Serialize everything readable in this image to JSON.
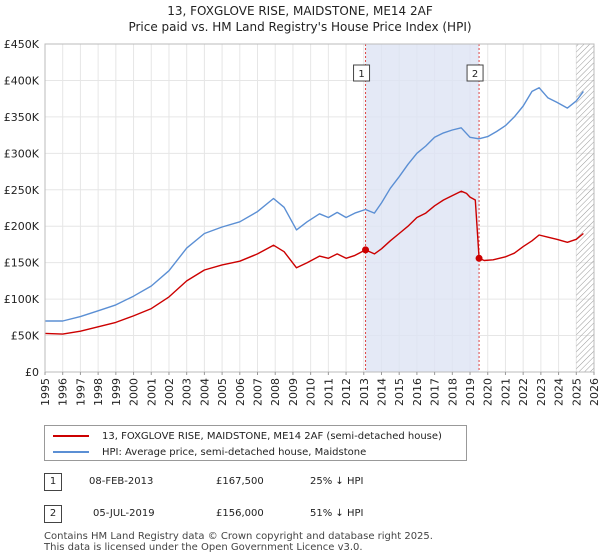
{
  "title_line1": "13, FOXGLOVE RISE, MAIDSTONE, ME14 2AF",
  "title_line2": "Price paid vs. HM Land Registry's House Price Index (HPI)",
  "colors": {
    "red": "#cc0000",
    "blue": "#5b8fd4",
    "band": "#dde4f4",
    "vline": "#dd4444"
  },
  "chart_data": {
    "type": "line",
    "title": "13, FOXGLOVE RISE, MAIDSTONE, ME14 2AF — Price paid vs. HM Land Registry's House Price Index (HPI)",
    "xlim": [
      1995,
      2026
    ],
    "ylim": [
      0,
      450000
    ],
    "x_ticks": [
      1995,
      1996,
      1997,
      1998,
      1999,
      2000,
      2001,
      2002,
      2003,
      2004,
      2005,
      2006,
      2007,
      2008,
      2009,
      2010,
      2011,
      2012,
      2013,
      2014,
      2015,
      2016,
      2017,
      2018,
      2019,
      2020,
      2021,
      2022,
      2023,
      2024,
      2025,
      2026
    ],
    "y_ticks": [
      0,
      50000,
      100000,
      150000,
      200000,
      250000,
      300000,
      350000,
      400000,
      450000
    ],
    "y_tick_labels": [
      "£0",
      "£50K",
      "£100K",
      "£150K",
      "£200K",
      "£250K",
      "£300K",
      "£350K",
      "£400K",
      "£450K"
    ],
    "shaded_band": [
      2013.1,
      2019.51
    ],
    "future_hatch_from": 2025.0,
    "series": [
      {
        "name": "13, FOXGLOVE RISE, MAIDSTONE, ME14 2AF (semi-detached house)",
        "color": "#cc0000",
        "points": [
          [
            1995.0,
            53000
          ],
          [
            1996.0,
            52000
          ],
          [
            1997.0,
            56000
          ],
          [
            1998.0,
            62000
          ],
          [
            1999.0,
            68000
          ],
          [
            2000.0,
            77000
          ],
          [
            2001.0,
            87000
          ],
          [
            2002.0,
            103000
          ],
          [
            2003.0,
            125000
          ],
          [
            2004.0,
            140000
          ],
          [
            2005.0,
            147000
          ],
          [
            2006.0,
            152000
          ],
          [
            2007.0,
            162000
          ],
          [
            2007.9,
            174000
          ],
          [
            2008.5,
            165000
          ],
          [
            2009.2,
            143000
          ],
          [
            2009.8,
            150000
          ],
          [
            2010.5,
            159000
          ],
          [
            2011.0,
            156000
          ],
          [
            2011.5,
            162000
          ],
          [
            2012.0,
            156000
          ],
          [
            2012.5,
            160000
          ],
          [
            2013.1,
            167500
          ],
          [
            2013.6,
            162000
          ],
          [
            2014.0,
            169000
          ],
          [
            2014.5,
            180000
          ],
          [
            2015.0,
            190000
          ],
          [
            2015.5,
            200000
          ],
          [
            2016.0,
            212000
          ],
          [
            2016.5,
            218000
          ],
          [
            2017.0,
            228000
          ],
          [
            2017.5,
            236000
          ],
          [
            2018.0,
            242000
          ],
          [
            2018.5,
            248000
          ],
          [
            2018.8,
            245000
          ],
          [
            2019.0,
            240000
          ],
          [
            2019.3,
            236000
          ],
          [
            2019.51,
            156000
          ],
          [
            2019.8,
            153000
          ],
          [
            2020.3,
            154000
          ],
          [
            2021.0,
            158000
          ],
          [
            2021.5,
            163000
          ],
          [
            2022.0,
            172000
          ],
          [
            2022.5,
            180000
          ],
          [
            2022.9,
            188000
          ],
          [
            2023.4,
            185000
          ],
          [
            2023.9,
            182000
          ],
          [
            2024.5,
            178000
          ],
          [
            2025.0,
            182000
          ],
          [
            2025.4,
            190000
          ]
        ]
      },
      {
        "name": "HPI: Average price, semi-detached house, Maidstone",
        "color": "#5b8fd4",
        "points": [
          [
            1995.0,
            70000
          ],
          [
            1996.0,
            70000
          ],
          [
            1997.0,
            76000
          ],
          [
            1998.0,
            84000
          ],
          [
            1999.0,
            92000
          ],
          [
            2000.0,
            104000
          ],
          [
            2001.0,
            118000
          ],
          [
            2002.0,
            139000
          ],
          [
            2003.0,
            170000
          ],
          [
            2004.0,
            190000
          ],
          [
            2005.0,
            199000
          ],
          [
            2006.0,
            206000
          ],
          [
            2007.0,
            220000
          ],
          [
            2007.9,
            238000
          ],
          [
            2008.5,
            226000
          ],
          [
            2009.2,
            195000
          ],
          [
            2009.8,
            206000
          ],
          [
            2010.5,
            217000
          ],
          [
            2011.0,
            212000
          ],
          [
            2011.5,
            219000
          ],
          [
            2012.0,
            212000
          ],
          [
            2012.5,
            218000
          ],
          [
            2013.1,
            223000
          ],
          [
            2013.6,
            218000
          ],
          [
            2014.0,
            232000
          ],
          [
            2014.5,
            252000
          ],
          [
            2015.0,
            268000
          ],
          [
            2015.5,
            285000
          ],
          [
            2016.0,
            300000
          ],
          [
            2016.5,
            310000
          ],
          [
            2017.0,
            322000
          ],
          [
            2017.5,
            328000
          ],
          [
            2018.0,
            332000
          ],
          [
            2018.5,
            335000
          ],
          [
            2019.0,
            322000
          ],
          [
            2019.5,
            320000
          ],
          [
            2020.0,
            323000
          ],
          [
            2020.5,
            330000
          ],
          [
            2021.0,
            338000
          ],
          [
            2021.5,
            350000
          ],
          [
            2022.0,
            365000
          ],
          [
            2022.5,
            385000
          ],
          [
            2022.9,
            390000
          ],
          [
            2023.4,
            376000
          ],
          [
            2023.9,
            370000
          ],
          [
            2024.5,
            362000
          ],
          [
            2025.0,
            372000
          ],
          [
            2025.4,
            385000
          ]
        ]
      }
    ],
    "markers": [
      {
        "label": "1",
        "x": 2013.1,
        "y": 167500
      },
      {
        "label": "2",
        "x": 2019.51,
        "y": 156000
      }
    ]
  },
  "legend": {
    "red_label": "13, FOXGLOVE RISE, MAIDSTONE, ME14 2AF (semi-detached house)",
    "blue_label": "HPI: Average price, semi-detached house, Maidstone"
  },
  "sales": [
    {
      "num": "1",
      "date": "08-FEB-2013",
      "price": "£167,500",
      "delta": "25% ↓ HPI"
    },
    {
      "num": "2",
      "date": "05-JUL-2019",
      "price": "£156,000",
      "delta": "51% ↓ HPI"
    }
  ],
  "footer_line1": "Contains HM Land Registry data © Crown copyright and database right 2025.",
  "footer_line2": "This data is licensed under the Open Government Licence v3.0."
}
